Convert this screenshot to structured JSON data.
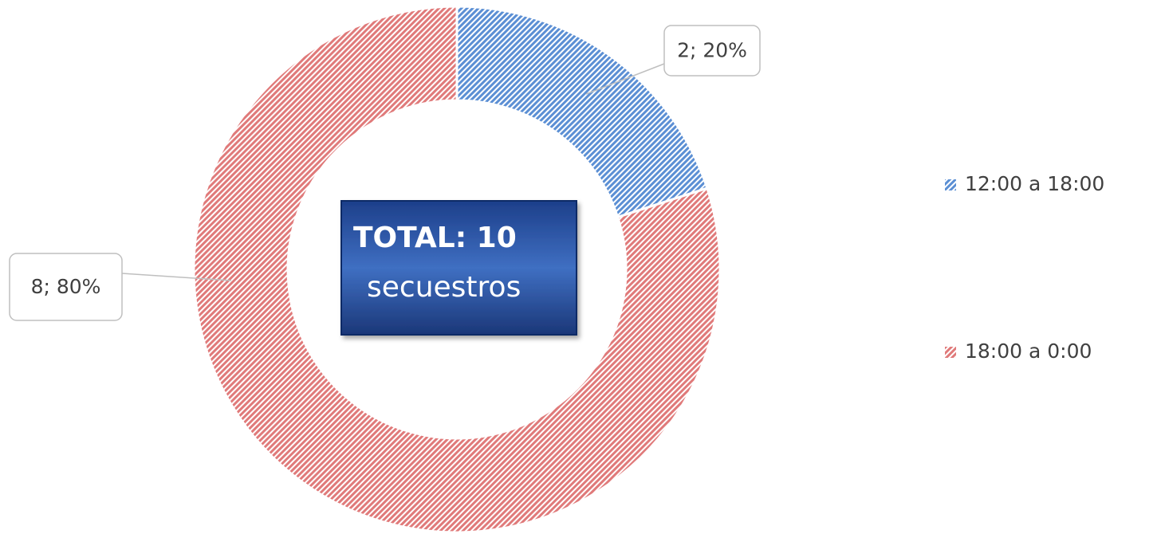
{
  "chart_data": {
    "type": "donut",
    "categories": [
      "12:00 a 18:00",
      "18:00 a 0:00"
    ],
    "values": [
      2,
      8
    ],
    "value_labels": [
      "2; 20%",
      "8; 80%"
    ],
    "colors": [
      "#5b8fd4",
      "#e07a7a"
    ],
    "center_title": "TOTAL: 10",
    "center_subtitle": "secuestros",
    "legend": "right"
  }
}
